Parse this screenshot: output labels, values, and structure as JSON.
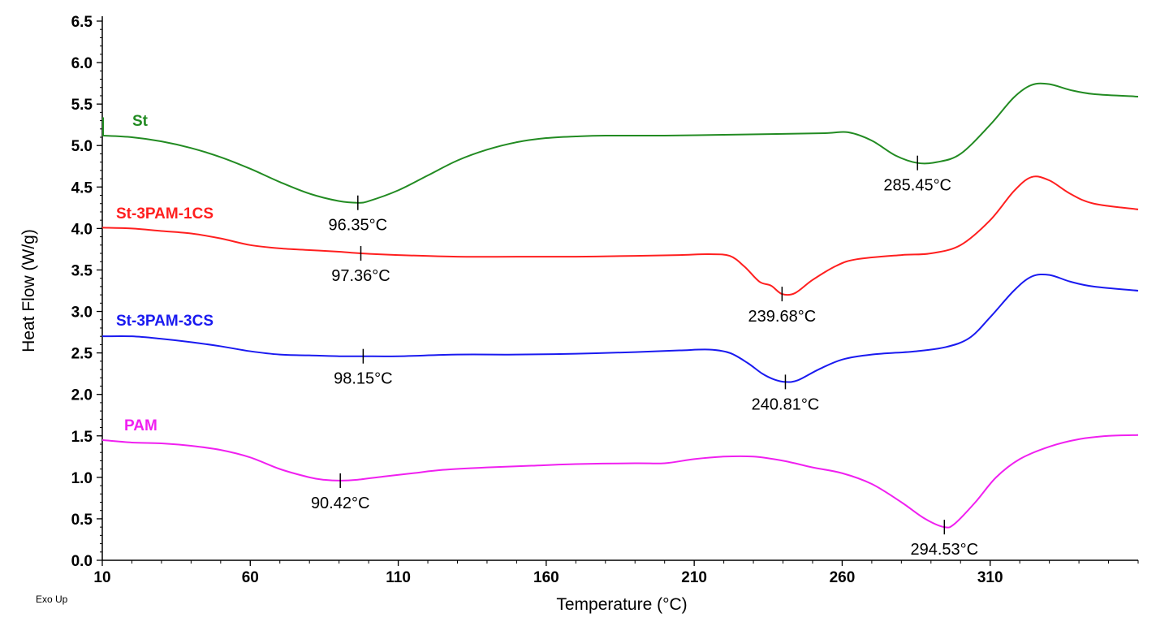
{
  "chart_data": {
    "type": "line",
    "title": "",
    "xlabel": "Temperature (°C)",
    "ylabel": "Heat Flow (W/g)",
    "xlim": [
      10,
      360
    ],
    "ylim": [
      0,
      6.5
    ],
    "xticks": [
      10,
      60,
      110,
      160,
      210,
      260,
      310
    ],
    "xtick_labels": [
      "10",
      "60",
      "110",
      "160",
      "210",
      "260",
      "310"
    ],
    "yticks": [
      0,
      0.5,
      1,
      1.5,
      2,
      2.5,
      3,
      3.5,
      4,
      4.5,
      5,
      5.5,
      6,
      6.5
    ],
    "ytick_labels": [
      "0.0",
      "0.5",
      "1.0",
      "1.5",
      "2.0",
      "2.5",
      "3.0",
      "3.5",
      "4.0",
      "4.5",
      "5.0",
      "5.5",
      "6.0",
      "6.5"
    ],
    "grid": false,
    "note": "Exo Up",
    "series": [
      {
        "name": "St",
        "color": "#228B22",
        "points": [
          [
            10,
            5.12
          ],
          [
            20,
            5.1
          ],
          [
            30,
            5.05
          ],
          [
            40,
            4.97
          ],
          [
            50,
            4.86
          ],
          [
            60,
            4.72
          ],
          [
            70,
            4.56
          ],
          [
            80,
            4.42
          ],
          [
            90,
            4.33
          ],
          [
            96.35,
            4.31
          ],
          [
            100,
            4.33
          ],
          [
            110,
            4.46
          ],
          [
            120,
            4.64
          ],
          [
            130,
            4.82
          ],
          [
            140,
            4.95
          ],
          [
            150,
            5.04
          ],
          [
            160,
            5.09
          ],
          [
            170,
            5.11
          ],
          [
            180,
            5.12
          ],
          [
            200,
            5.12
          ],
          [
            220,
            5.13
          ],
          [
            240,
            5.14
          ],
          [
            255,
            5.15
          ],
          [
            262,
            5.16
          ],
          [
            270,
            5.06
          ],
          [
            278,
            4.88
          ],
          [
            285.45,
            4.79
          ],
          [
            292,
            4.8
          ],
          [
            300,
            4.9
          ],
          [
            310,
            5.25
          ],
          [
            318,
            5.58
          ],
          [
            324,
            5.73
          ],
          [
            330,
            5.74
          ],
          [
            337,
            5.67
          ],
          [
            345,
            5.62
          ],
          [
            360,
            5.59
          ]
        ]
      },
      {
        "name": "St-3PAM-1CS",
        "color": "#FF1F1F",
        "points": [
          [
            10,
            4.01
          ],
          [
            20,
            4.0
          ],
          [
            30,
            3.97
          ],
          [
            40,
            3.94
          ],
          [
            50,
            3.88
          ],
          [
            60,
            3.8
          ],
          [
            70,
            3.76
          ],
          [
            80,
            3.74
          ],
          [
            90,
            3.72
          ],
          [
            97.36,
            3.7
          ],
          [
            110,
            3.68
          ],
          [
            130,
            3.66
          ],
          [
            150,
            3.66
          ],
          [
            170,
            3.66
          ],
          [
            190,
            3.67
          ],
          [
            205,
            3.68
          ],
          [
            215,
            3.69
          ],
          [
            222,
            3.67
          ],
          [
            227,
            3.54
          ],
          [
            232,
            3.36
          ],
          [
            236,
            3.31
          ],
          [
            239.68,
            3.21
          ],
          [
            244,
            3.22
          ],
          [
            250,
            3.38
          ],
          [
            258,
            3.55
          ],
          [
            265,
            3.63
          ],
          [
            280,
            3.68
          ],
          [
            290,
            3.7
          ],
          [
            300,
            3.8
          ],
          [
            310,
            4.1
          ],
          [
            318,
            4.45
          ],
          [
            324,
            4.62
          ],
          [
            330,
            4.58
          ],
          [
            337,
            4.42
          ],
          [
            345,
            4.3
          ],
          [
            360,
            4.23
          ]
        ]
      },
      {
        "name": "St-3PAM-3CS",
        "color": "#1A1AF0",
        "points": [
          [
            10,
            2.7
          ],
          [
            20,
            2.7
          ],
          [
            30,
            2.67
          ],
          [
            40,
            2.63
          ],
          [
            50,
            2.58
          ],
          [
            60,
            2.52
          ],
          [
            70,
            2.48
          ],
          [
            80,
            2.47
          ],
          [
            90,
            2.46
          ],
          [
            98.15,
            2.46
          ],
          [
            110,
            2.46
          ],
          [
            130,
            2.48
          ],
          [
            150,
            2.48
          ],
          [
            170,
            2.49
          ],
          [
            190,
            2.51
          ],
          [
            205,
            2.53
          ],
          [
            215,
            2.54
          ],
          [
            222,
            2.5
          ],
          [
            228,
            2.38
          ],
          [
            233,
            2.25
          ],
          [
            237,
            2.18
          ],
          [
            240.81,
            2.15
          ],
          [
            245,
            2.17
          ],
          [
            252,
            2.3
          ],
          [
            260,
            2.42
          ],
          [
            270,
            2.48
          ],
          [
            285,
            2.52
          ],
          [
            295,
            2.57
          ],
          [
            303,
            2.68
          ],
          [
            310,
            2.93
          ],
          [
            318,
            3.25
          ],
          [
            324,
            3.42
          ],
          [
            330,
            3.44
          ],
          [
            337,
            3.36
          ],
          [
            345,
            3.3
          ],
          [
            360,
            3.25
          ]
        ]
      },
      {
        "name": "PAM",
        "color": "#F020F0",
        "points": [
          [
            10,
            1.45
          ],
          [
            20,
            1.42
          ],
          [
            30,
            1.41
          ],
          [
            40,
            1.38
          ],
          [
            50,
            1.33
          ],
          [
            60,
            1.24
          ],
          [
            70,
            1.1
          ],
          [
            80,
            1.0
          ],
          [
            85,
            0.97
          ],
          [
            90.42,
            0.96
          ],
          [
            96,
            0.97
          ],
          [
            105,
            1.01
          ],
          [
            115,
            1.05
          ],
          [
            125,
            1.09
          ],
          [
            140,
            1.12
          ],
          [
            155,
            1.14
          ],
          [
            170,
            1.16
          ],
          [
            190,
            1.17
          ],
          [
            200,
            1.17
          ],
          [
            210,
            1.22
          ],
          [
            220,
            1.25
          ],
          [
            230,
            1.25
          ],
          [
            240,
            1.2
          ],
          [
            250,
            1.12
          ],
          [
            260,
            1.05
          ],
          [
            270,
            0.92
          ],
          [
            280,
            0.7
          ],
          [
            288,
            0.5
          ],
          [
            294.53,
            0.4
          ],
          [
            298,
            0.44
          ],
          [
            305,
            0.7
          ],
          [
            312,
            1.0
          ],
          [
            320,
            1.22
          ],
          [
            330,
            1.37
          ],
          [
            340,
            1.46
          ],
          [
            350,
            1.5
          ],
          [
            360,
            1.51
          ]
        ]
      }
    ],
    "peaks": [
      {
        "series": "St",
        "x": 96.35,
        "y": 4.31,
        "label": "96.35°C"
      },
      {
        "series": "St",
        "x": 285.45,
        "y": 4.79,
        "label": "285.45°C"
      },
      {
        "series": "St-3PAM-1CS",
        "x": 97.36,
        "y": 3.7,
        "label": "97.36°C"
      },
      {
        "series": "St-3PAM-1CS",
        "x": 239.68,
        "y": 3.21,
        "label": "239.68°C"
      },
      {
        "series": "St-3PAM-3CS",
        "x": 98.15,
        "y": 2.46,
        "label": "98.15°C"
      },
      {
        "series": "St-3PAM-3CS",
        "x": 240.81,
        "y": 2.15,
        "label": "240.81°C"
      },
      {
        "series": "PAM",
        "x": 90.42,
        "y": 0.96,
        "label": "90.42°C"
      },
      {
        "series": "PAM",
        "x": 294.53,
        "y": 0.4,
        "label": "294.53°C"
      }
    ]
  }
}
